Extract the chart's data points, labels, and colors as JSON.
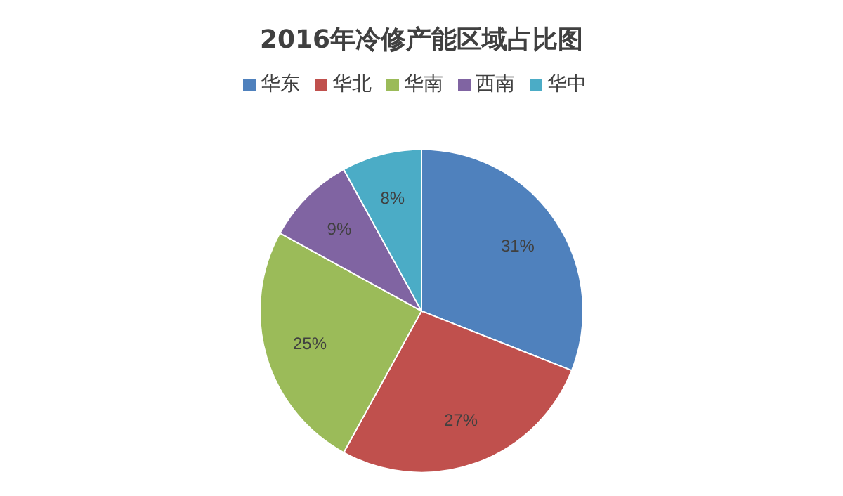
{
  "chart_data": {
    "type": "pie",
    "title": "2016年冷修产能区域占比图",
    "categories": [
      "华东",
      "华北",
      "华南",
      "西南",
      "华中"
    ],
    "values": [
      31,
      27,
      25,
      9,
      8
    ],
    "value_labels": [
      "31%",
      "27%",
      "25%",
      "9%",
      "8%"
    ],
    "colors": [
      "#4f81bd",
      "#c0504d",
      "#9bbb59",
      "#8064a2",
      "#4bacc6"
    ],
    "legend": "top"
  }
}
